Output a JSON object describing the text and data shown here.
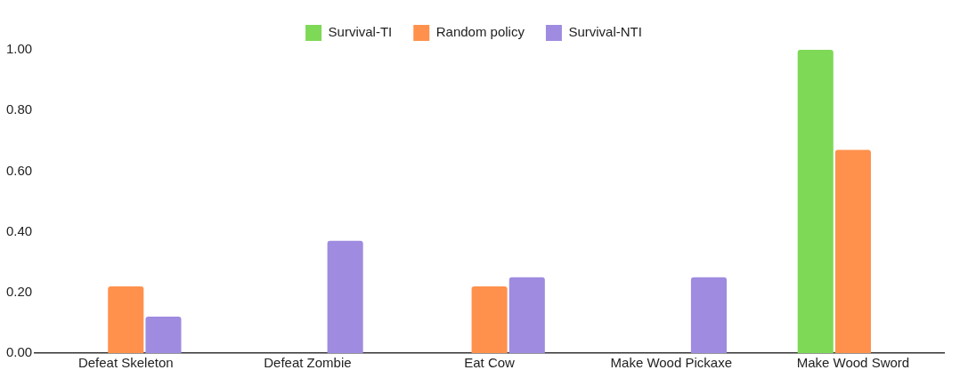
{
  "chart_data": {
    "type": "bar",
    "categories": [
      "Defeat Skeleton",
      "Defeat Zombie",
      "Eat Cow",
      "Make Wood Pickaxe",
      "Make Wood Sword"
    ],
    "series": [
      {
        "name": "Survival-TI",
        "color": "#7ed957",
        "values": [
          0,
          0,
          0,
          0,
          1.0
        ]
      },
      {
        "name": "Random policy",
        "color": "#ff914d",
        "values": [
          0.22,
          0,
          0.22,
          0,
          0.67
        ]
      },
      {
        "name": "Survival-NTI",
        "color": "#9f8be0",
        "values": [
          0.12,
          0.37,
          0.25,
          0.25,
          0
        ]
      }
    ],
    "ylim": [
      0,
      1
    ],
    "yticks": [
      {
        "value": 0,
        "label": "0.00"
      },
      {
        "value": 0.2,
        "label": "0.20"
      },
      {
        "value": 0.4,
        "label": "0.40"
      },
      {
        "value": 0.6,
        "label": "0.60"
      },
      {
        "value": 0.8,
        "label": "0.80"
      },
      {
        "value": 1,
        "label": "1.00"
      }
    ],
    "grid": false,
    "legend": "top"
  }
}
